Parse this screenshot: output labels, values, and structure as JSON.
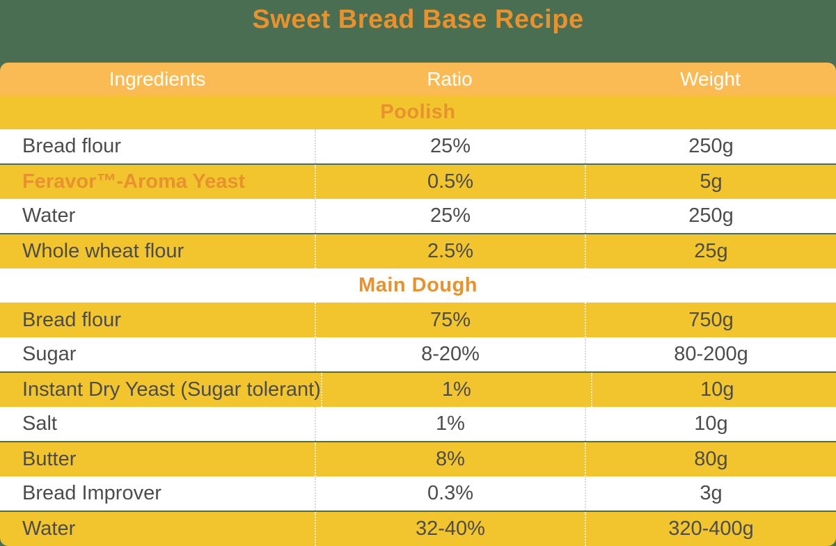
{
  "title": "Sweet Bread Base Recipe",
  "colors": {
    "background_green": "#4A6E51",
    "header_amber": "#FABB55",
    "row_yellow": "#F2C52E",
    "accent_orange": "#E8912F",
    "text_dark": "#4C4C4C",
    "header_text": "#FFFFFF"
  },
  "table": {
    "columns": [
      "Ingredients",
      "Ratio",
      "Weight"
    ],
    "sections": [
      {
        "name": "Poolish",
        "rows": [
          {
            "ingredient": "Bread flour",
            "ratio": "25%",
            "weight": "250g",
            "accent": false
          },
          {
            "ingredient": "Feravor™-Aroma Yeast",
            "ratio": "0.5%",
            "weight": "5g",
            "accent": true
          },
          {
            "ingredient": "Water",
            "ratio": "25%",
            "weight": "250g",
            "accent": false
          },
          {
            "ingredient": "Whole wheat flour",
            "ratio": "2.5%",
            "weight": "25g",
            "accent": false
          }
        ]
      },
      {
        "name": "Main Dough",
        "rows": [
          {
            "ingredient": "Bread flour",
            "ratio": "75%",
            "weight": "750g",
            "accent": false
          },
          {
            "ingredient": "Sugar",
            "ratio": "8-20%",
            "weight": "80-200g",
            "accent": false
          },
          {
            "ingredient": "Instant Dry Yeast (Sugar tolerant)",
            "ratio": "1%",
            "weight": "10g",
            "accent": false
          },
          {
            "ingredient": "Salt",
            "ratio": "1%",
            "weight": "10g",
            "accent": false
          },
          {
            "ingredient": "Butter",
            "ratio": "8%",
            "weight": "80g",
            "accent": false
          },
          {
            "ingredient": "Bread Improver",
            "ratio": "0.3%",
            "weight": "3g",
            "accent": false
          },
          {
            "ingredient": "Water",
            "ratio": "32-40%",
            "weight": "320-400g",
            "accent": false
          }
        ]
      }
    ]
  }
}
